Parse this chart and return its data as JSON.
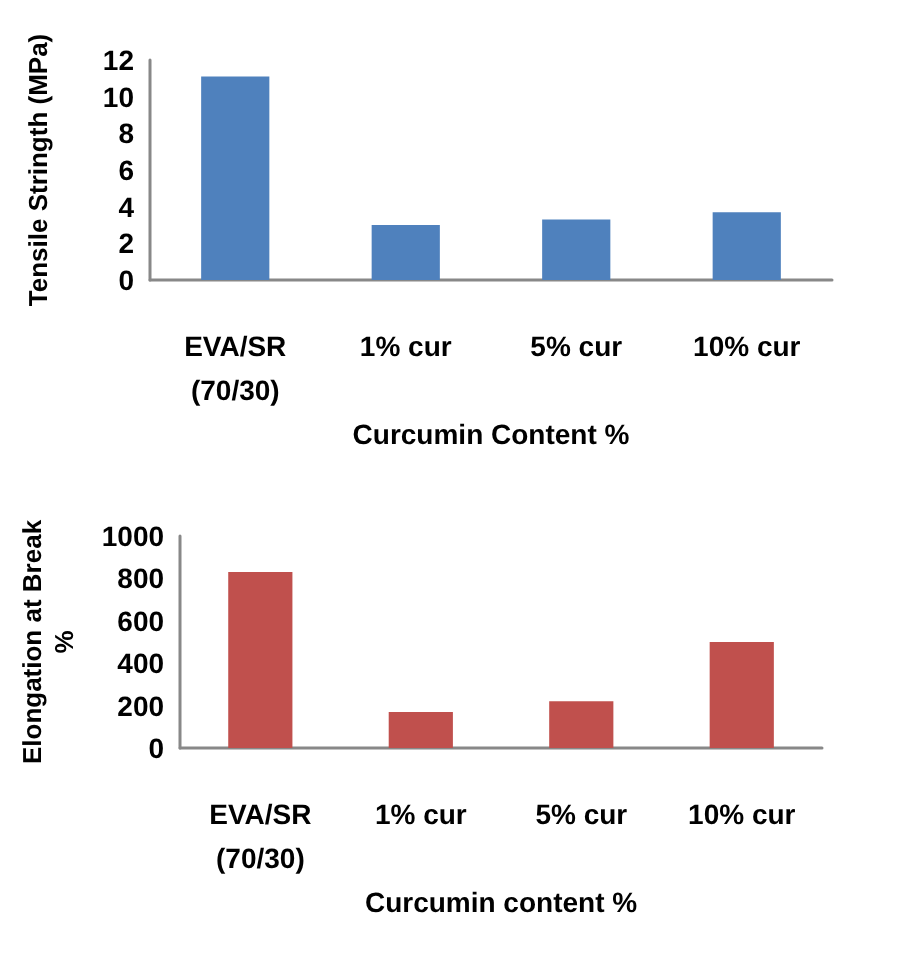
{
  "chart_data": [
    {
      "type": "bar",
      "xlabel": "Curcumin Content %",
      "ylabel": "Tensile Stringth (MPa)",
      "categories": [
        "EVA/SR\n(70/30)",
        "1% cur",
        "5% cur",
        "10% cur"
      ],
      "values": [
        11.1,
        3.0,
        3.3,
        3.7
      ],
      "color": "#4f81bd",
      "ylim": [
        0,
        12
      ],
      "yticks": [
        0,
        2,
        4,
        6,
        8,
        10,
        12
      ]
    },
    {
      "type": "bar",
      "xlabel": "Curcumin content %",
      "ylabel": "Elongation at Break\n%",
      "categories": [
        "EVA/SR\n(70/30)",
        "1% cur",
        "5% cur",
        "10% cur"
      ],
      "values": [
        830,
        170,
        220,
        500
      ],
      "color": "#c0504d",
      "ylim": [
        0,
        1000
      ],
      "yticks": [
        0,
        200,
        400,
        600,
        800,
        1000
      ]
    }
  ]
}
